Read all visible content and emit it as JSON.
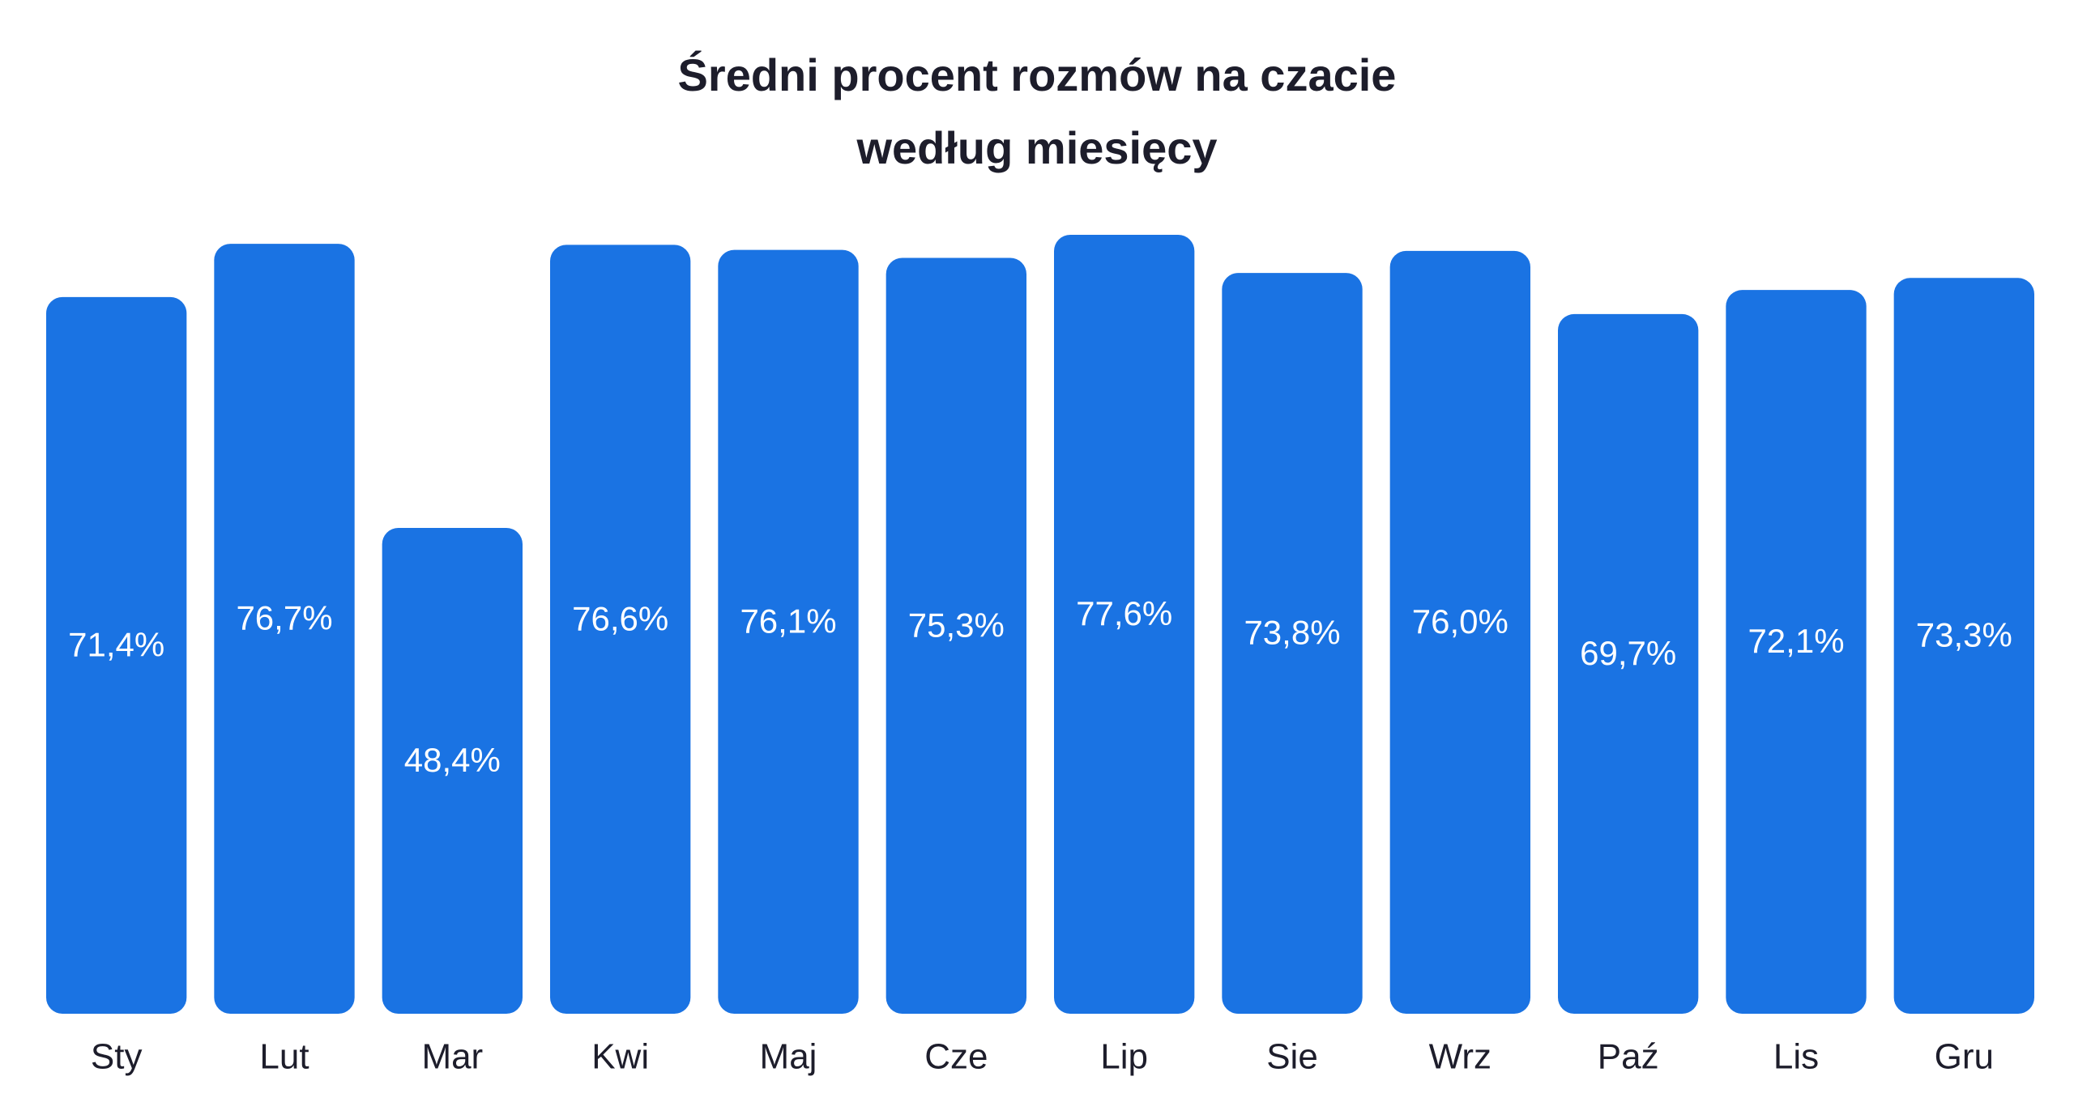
{
  "chart_data": {
    "type": "bar",
    "title": "Średni procent rozmów na czacie według miesięcy",
    "categories": [
      "Sty",
      "Lut",
      "Mar",
      "Kwi",
      "Maj",
      "Cze",
      "Lip",
      "Sie",
      "Wrz",
      "Paź",
      "Lis",
      "Gru"
    ],
    "values": [
      71.4,
      76.7,
      48.4,
      76.6,
      76.1,
      75.3,
      77.6,
      73.8,
      76.0,
      69.7,
      72.1,
      73.3
    ],
    "value_labels": [
      "71,4%",
      "76,7%",
      "48,4%",
      "76,6%",
      "76,1%",
      "75,3%",
      "77,6%",
      "73,8%",
      "76,0%",
      "69,7%",
      "72,1%",
      "73,3%"
    ],
    "color": "#1a73e3"
  }
}
